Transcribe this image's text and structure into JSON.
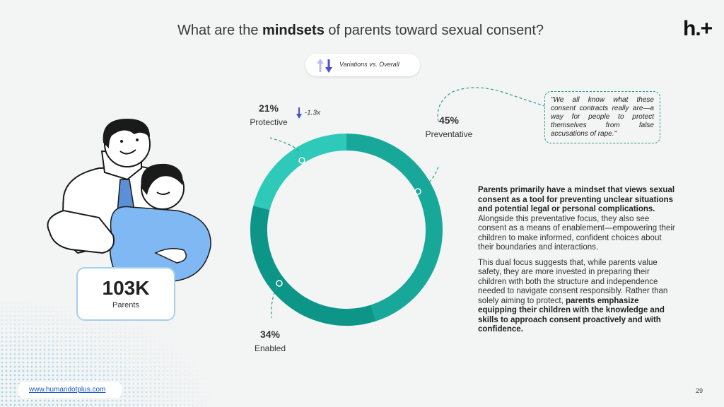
{
  "header": {
    "title_pre": "What are the ",
    "title_bold": "mindsets",
    "title_post": " of parents toward sexual consent?",
    "logo": "h.+"
  },
  "legend_pill": {
    "label": "Variations vs. Overall",
    "icon": "up-down-arrows-icon"
  },
  "chart_data": {
    "type": "pie",
    "categories": [
      "Preventative",
      "Enabled",
      "Protective"
    ],
    "values": [
      45,
      34,
      21
    ],
    "value_labels": [
      "45%",
      "34%",
      "21%"
    ],
    "colors": [
      "#17a899",
      "#0d9688",
      "#2ec9b8"
    ],
    "variations": [
      {
        "category": "Protective",
        "label": "-1.3x",
        "direction": "down"
      }
    ]
  },
  "quote": "\"We all know what these consent contracts really are—a way for people to protect themselves from false accusations of rape.\"",
  "body": {
    "p1_bold": "Parents primarily have a mindset that views sexual consent as a tool for preventing unclear situations and potential legal or personal complications.",
    "p1_rest": " Alongside this preventative focus, they also see consent as a means of enablement—empowering their children to make informed, confident choices about their boundaries and interactions.",
    "p2_start": "This dual focus suggests that, while parents value safety, they are more invested in preparing their children with both the structure and independence needed to navigate consent responsibly. Rather than solely aiming to protect, ",
    "p2_bold": "parents emphasize equipping their children with the knowledge and skills to approach consent proactively and with confidence."
  },
  "stat": {
    "value": "103K",
    "label": "Parents"
  },
  "footer": {
    "url": "www.humandotplus.com",
    "page": "29"
  },
  "colors": {
    "accent": "#17a899",
    "illustration_blue": "#7fb8f2",
    "link": "#1a55c4"
  }
}
